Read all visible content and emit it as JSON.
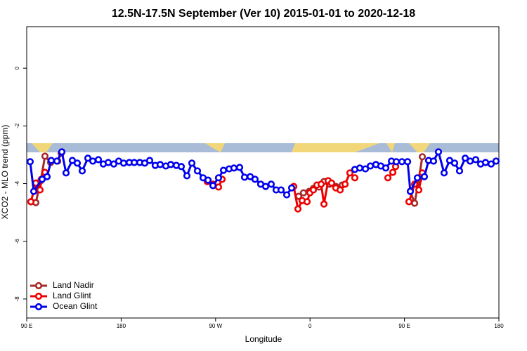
{
  "chart_data": {
    "type": "line",
    "title": "12.5N-17.5N September (Ver 10)   2015-01-01 to 2020-12-18",
    "x_label": "Longitude",
    "y_label": "XCO2 - MLO trend (ppm)",
    "xlim": [
      90,
      540
    ],
    "xticks": [
      {
        "value": 90,
        "label": "90 E"
      },
      180,
      {
        "value": 270,
        "label": "90 W"
      },
      {
        "value": 360,
        "label": "0"
      },
      {
        "value": 450,
        "label": "90 E"
      },
      {
        "value": 540,
        "label": "180"
      }
    ],
    "ylim": [
      -8.66,
      1.44
    ],
    "yticks": [
      0,
      -2,
      -4,
      -6,
      -8
    ],
    "legend": "bottom-left",
    "series": [
      {
        "name": "Land Nadir",
        "color": "#a52a2a",
        "x": [
          94,
          98.7,
          103.4,
          107.4,
          112.8,
          119.5,
          122.8,
          null,
          349.2,
          353.8,
          359.2,
          363.2,
          368.6,
          373.3,
          378.6,
          384.6,
          390.7,
          null,
          455.6,
          459.7,
          463.7,
          467
        ],
        "values": [
          -4.63,
          -4.66,
          -3.9,
          -3.05,
          -3.27,
          -3.22,
          -2.95,
          null,
          -4.44,
          -4.32,
          -4.27,
          -4.17,
          -4.12,
          -3.93,
          -4.02,
          -4.1,
          -4.05,
          null,
          -4.27,
          -4.68,
          -3.85,
          -3.07
        ]
      },
      {
        "name": "Land Glint",
        "color": "#ee0000",
        "x": [
          94,
          98.7,
          102.7,
          104.1,
          107.4,
          null,
          262.1,
          267.5,
          272.8,
          276.2,
          null,
          344.5,
          348.5,
          352.5,
          357.2,
          359.9,
          363.2,
          366.6,
          370.6,
          373.3,
          377.3,
          380.6,
          384.6,
          388.7,
          393.4,
          398,
          402.7,
          null,
          434.2,
          438.9,
          441.6,
          null,
          454.3,
          459.7,
          463.7,
          467
        ],
        "values": [
          -4.63,
          -3.98,
          -4.22,
          -3.85,
          -3.61,
          null,
          -3.93,
          -4.02,
          -4.12,
          -3.85,
          null,
          -4.1,
          -4.88,
          -4.59,
          -4.63,
          -4.32,
          -4.22,
          -4.05,
          -4.02,
          -4.71,
          -3.9,
          -3.98,
          -4.15,
          -4.22,
          -4.02,
          -3.63,
          -3.8,
          null,
          -3.8,
          -3.61,
          -3.41,
          null,
          -4.63,
          -4.02,
          -4.22,
          -3.63
        ]
      },
      {
        "name": "Ocean Glint",
        "color": "#0000ee",
        "x": [
          93.3,
          96.7,
          104.7,
          109.4,
          113.4,
          118.8,
          123.5,
          127.5,
          133.5,
          138.2,
          142.9,
          148.3,
          153,
          158.3,
          163,
          167.7,
          173,
          177.7,
          182.4,
          187.8,
          192.5,
          197.8,
          202.5,
          207.2,
          212.5,
          217.2,
          222.6,
          227.3,
          232.6,
          237.3,
          242.7,
          247.4,
          252.7,
          258.1,
          262.8,
          267.5,
          272.8,
          277.5,
          282.9,
          287.5,
          292.9,
          297.6,
          303,
          307.6,
          313,
          317.7,
          323,
          327.7,
          332.4,
          337.8,
          342.5,
          null,
          402.7,
          407.4,
          412.8,
          417.5,
          422.8,
          427.5,
          432.2,
          437.6,
          442.2,
          447.6,
          453,
          455.6,
          462.3,
          469,
          473,
          477.7,
          482.4,
          487.8,
          493.1,
          497.8,
          502.5,
          507.9,
          512.6,
          517.9,
          522.6,
          527.3,
          532.6,
          537.3
        ],
        "values": [
          -3.24,
          -4.27,
          -3.85,
          -3.76,
          -3.2,
          -3.22,
          -2.9,
          -3.63,
          -3.2,
          -3.29,
          -3.56,
          -3.12,
          -3.22,
          -3.17,
          -3.32,
          -3.27,
          -3.32,
          -3.22,
          -3.29,
          -3.27,
          -3.27,
          -3.27,
          -3.29,
          -3.2,
          -3.37,
          -3.34,
          -3.39,
          -3.34,
          -3.37,
          -3.41,
          -3.73,
          -3.29,
          -3.56,
          -3.8,
          -3.88,
          -4.07,
          -3.8,
          -3.54,
          -3.49,
          -3.46,
          -3.44,
          -3.78,
          -3.76,
          -3.85,
          -4.02,
          -4.1,
          -4.02,
          -4.22,
          -4.22,
          -4.39,
          -4.15,
          null,
          -3.51,
          -3.46,
          -3.49,
          -3.39,
          -3.34,
          -3.39,
          -3.46,
          -3.22,
          -3.24,
          -3.24,
          -3.24,
          -4.27,
          -3.8,
          -3.76,
          -3.2,
          -3.22,
          -2.9,
          -3.63,
          -3.2,
          -3.29,
          -3.56,
          -3.12,
          -3.22,
          -3.17,
          -3.32,
          -3.27,
          -3.32,
          -3.22
        ]
      }
    ]
  }
}
